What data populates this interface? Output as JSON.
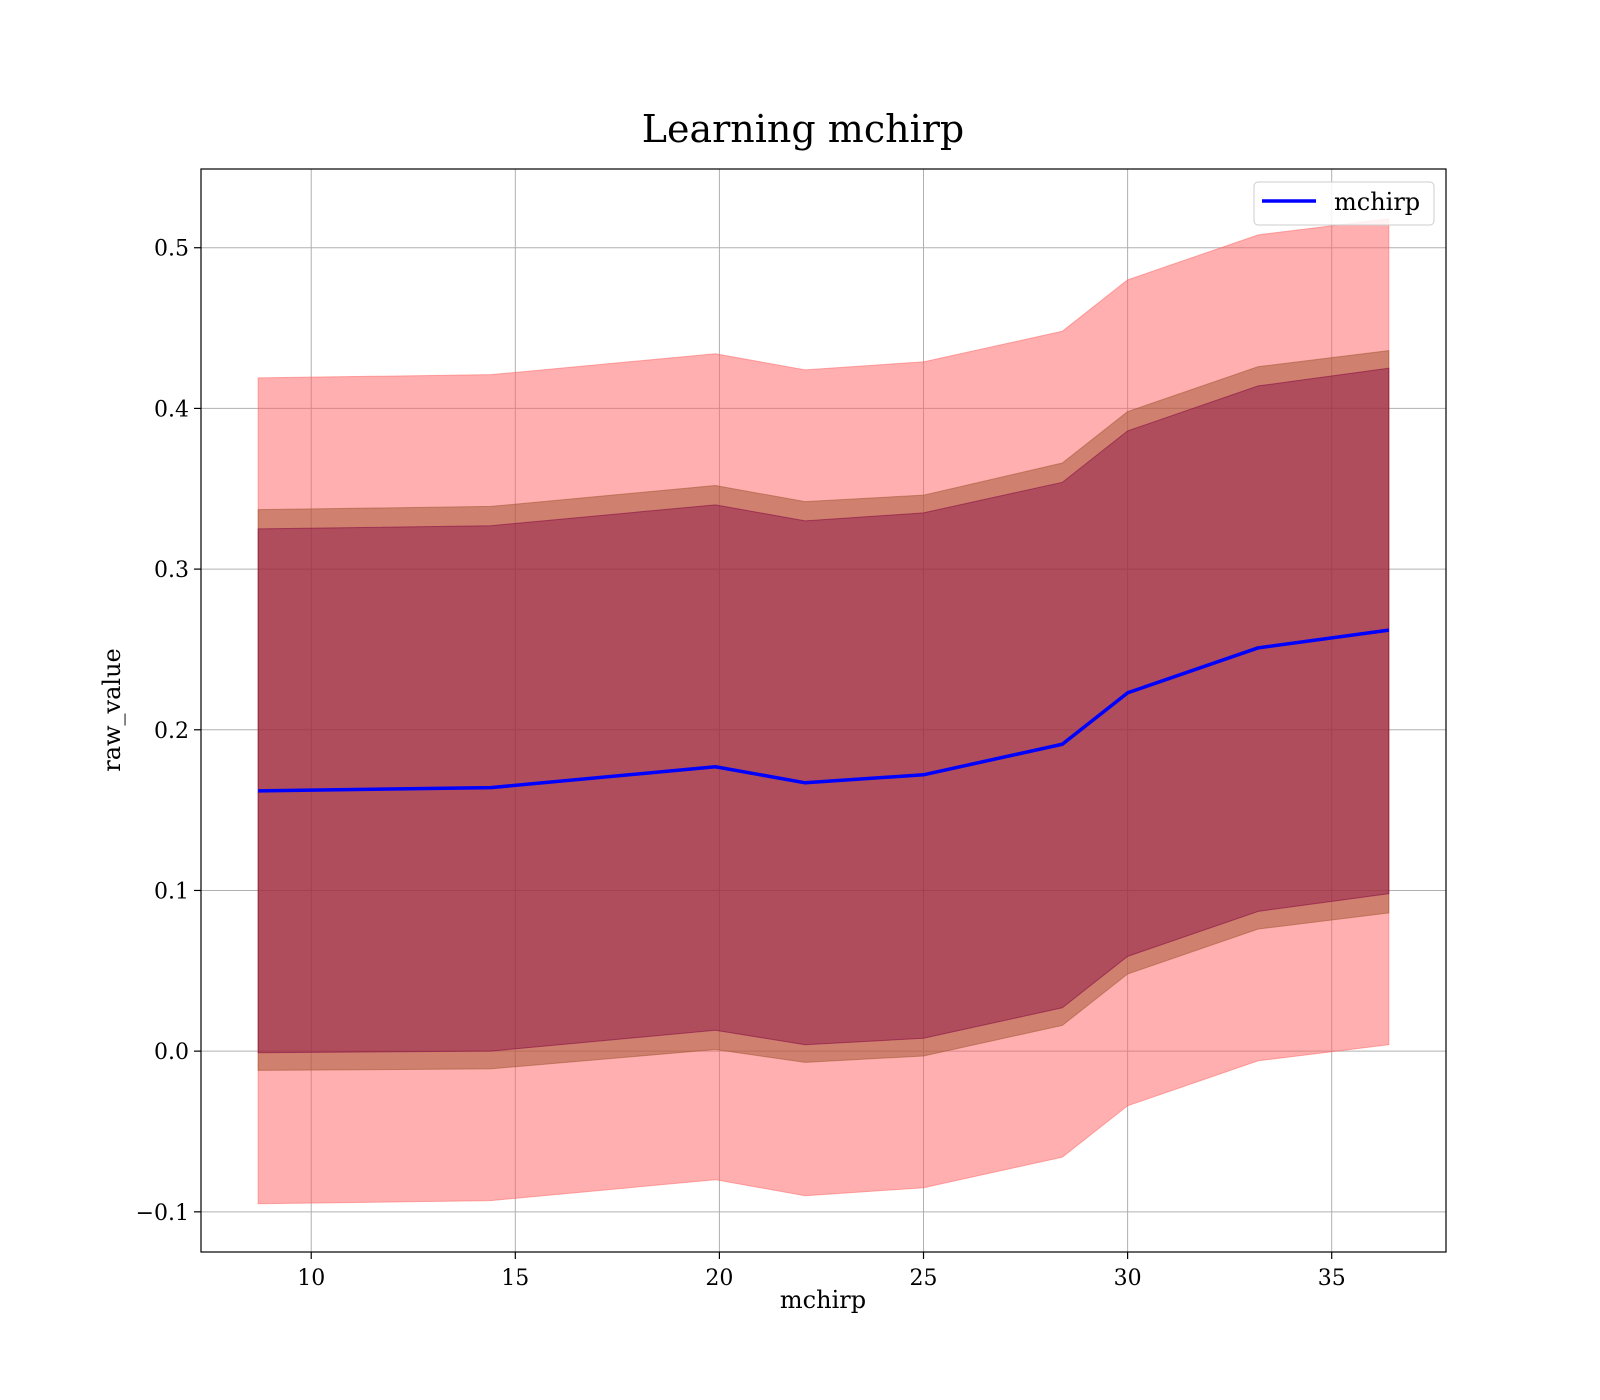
{
  "chart_data": {
    "type": "line",
    "title": "Learning mchirp",
    "xlabel": "mchirp",
    "ylabel": "raw_value",
    "xlim": [
      7.3,
      37.8
    ],
    "ylim": [
      -0.125,
      0.549
    ],
    "x_ticks": [
      10,
      15,
      20,
      25,
      30,
      35
    ],
    "y_ticks": [
      -0.1,
      0.0,
      0.1,
      0.2,
      0.3,
      0.4,
      0.5
    ],
    "y_tick_labels": [
      "−0.1",
      "0.0",
      "0.1",
      "0.2",
      "0.3",
      "0.4",
      "0.5"
    ],
    "grid": true,
    "legend": {
      "location": "top-right",
      "entries": [
        "mchirp"
      ]
    },
    "colors": {
      "line": "#0000ff",
      "outer_band": "#ff6060",
      "middle_band": "#a0522d",
      "inner_band": "#800040",
      "grid": "#b0b0b0"
    },
    "x": [
      8.7,
      14.4,
      19.9,
      22.1,
      25.0,
      28.4,
      30.0,
      33.2,
      36.4
    ],
    "series": [
      {
        "name": "mchirp",
        "values": [
          0.162,
          0.164,
          0.177,
          0.167,
          0.172,
          0.191,
          0.223,
          0.251,
          0.262
        ]
      }
    ],
    "bands": [
      {
        "lower": [
          -0.095,
          -0.093,
          -0.08,
          -0.09,
          -0.085,
          -0.066,
          -0.034,
          -0.006,
          0.004
        ],
        "upper": [
          0.419,
          0.421,
          0.434,
          0.424,
          0.429,
          0.448,
          0.48,
          0.508,
          0.518
        ]
      },
      {
        "lower": [
          -0.012,
          -0.011,
          0.001,
          -0.007,
          -0.003,
          0.016,
          0.048,
          0.076,
          0.086
        ],
        "upper": [
          0.337,
          0.339,
          0.352,
          0.342,
          0.346,
          0.366,
          0.398,
          0.426,
          0.436
        ]
      },
      {
        "lower": [
          -0.001,
          0.0,
          0.013,
          0.004,
          0.008,
          0.027,
          0.059,
          0.087,
          0.098
        ],
        "upper": [
          0.325,
          0.327,
          0.34,
          0.33,
          0.335,
          0.354,
          0.386,
          0.414,
          0.425
        ]
      }
    ]
  }
}
